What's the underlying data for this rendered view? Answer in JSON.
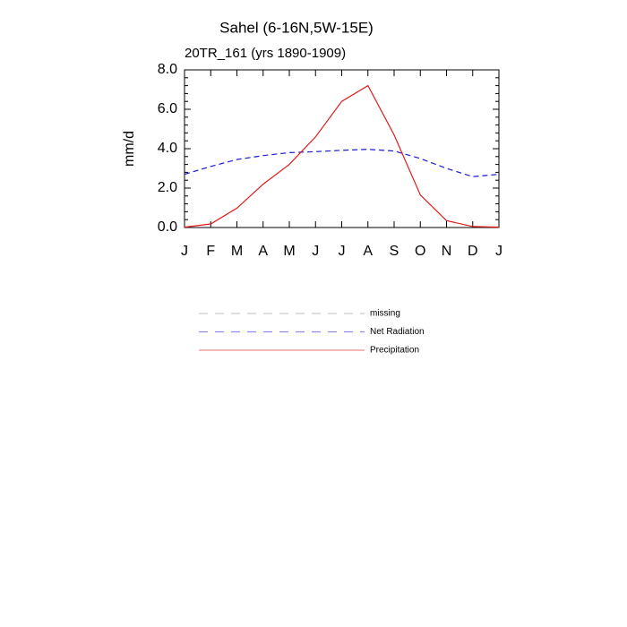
{
  "chart_data": {
    "type": "line",
    "title": "Sahel (6-16N,5W-15E)",
    "subtitle": "20TR_161 (yrs 1890-1909)",
    "y_label": "mm/d",
    "categories": [
      "J",
      "F",
      "M",
      "A",
      "M",
      "J",
      "J",
      "A",
      "S",
      "O",
      "N",
      "D",
      "J"
    ],
    "ylim": [
      0,
      8
    ],
    "yticks": [
      {
        "value": 0,
        "label": "0.0"
      },
      {
        "value": 2,
        "label": "2.0"
      },
      {
        "value": 4,
        "label": "4.0"
      },
      {
        "value": 6,
        "label": "6.0"
      },
      {
        "value": 8,
        "label": "8.0"
      }
    ],
    "series": [
      {
        "name": "missing",
        "color": "#999999",
        "dash": true,
        "values": [
          null,
          null,
          null,
          null,
          null,
          null,
          null,
          null,
          null,
          null,
          null,
          null,
          null
        ]
      },
      {
        "name": "Net Radiation",
        "color": "#1a1adb",
        "dash": true,
        "values": [
          2.7,
          3.1,
          3.45,
          3.65,
          3.8,
          3.85,
          3.92,
          3.97,
          3.88,
          3.5,
          3.0,
          2.58,
          2.7
        ]
      },
      {
        "name": "Precipitation",
        "color": "#e01a1a",
        "dash": false,
        "values": [
          0.02,
          0.18,
          0.98,
          2.2,
          3.2,
          4.6,
          6.4,
          7.2,
          4.7,
          1.65,
          0.35,
          0.05,
          0.02
        ]
      }
    ]
  }
}
